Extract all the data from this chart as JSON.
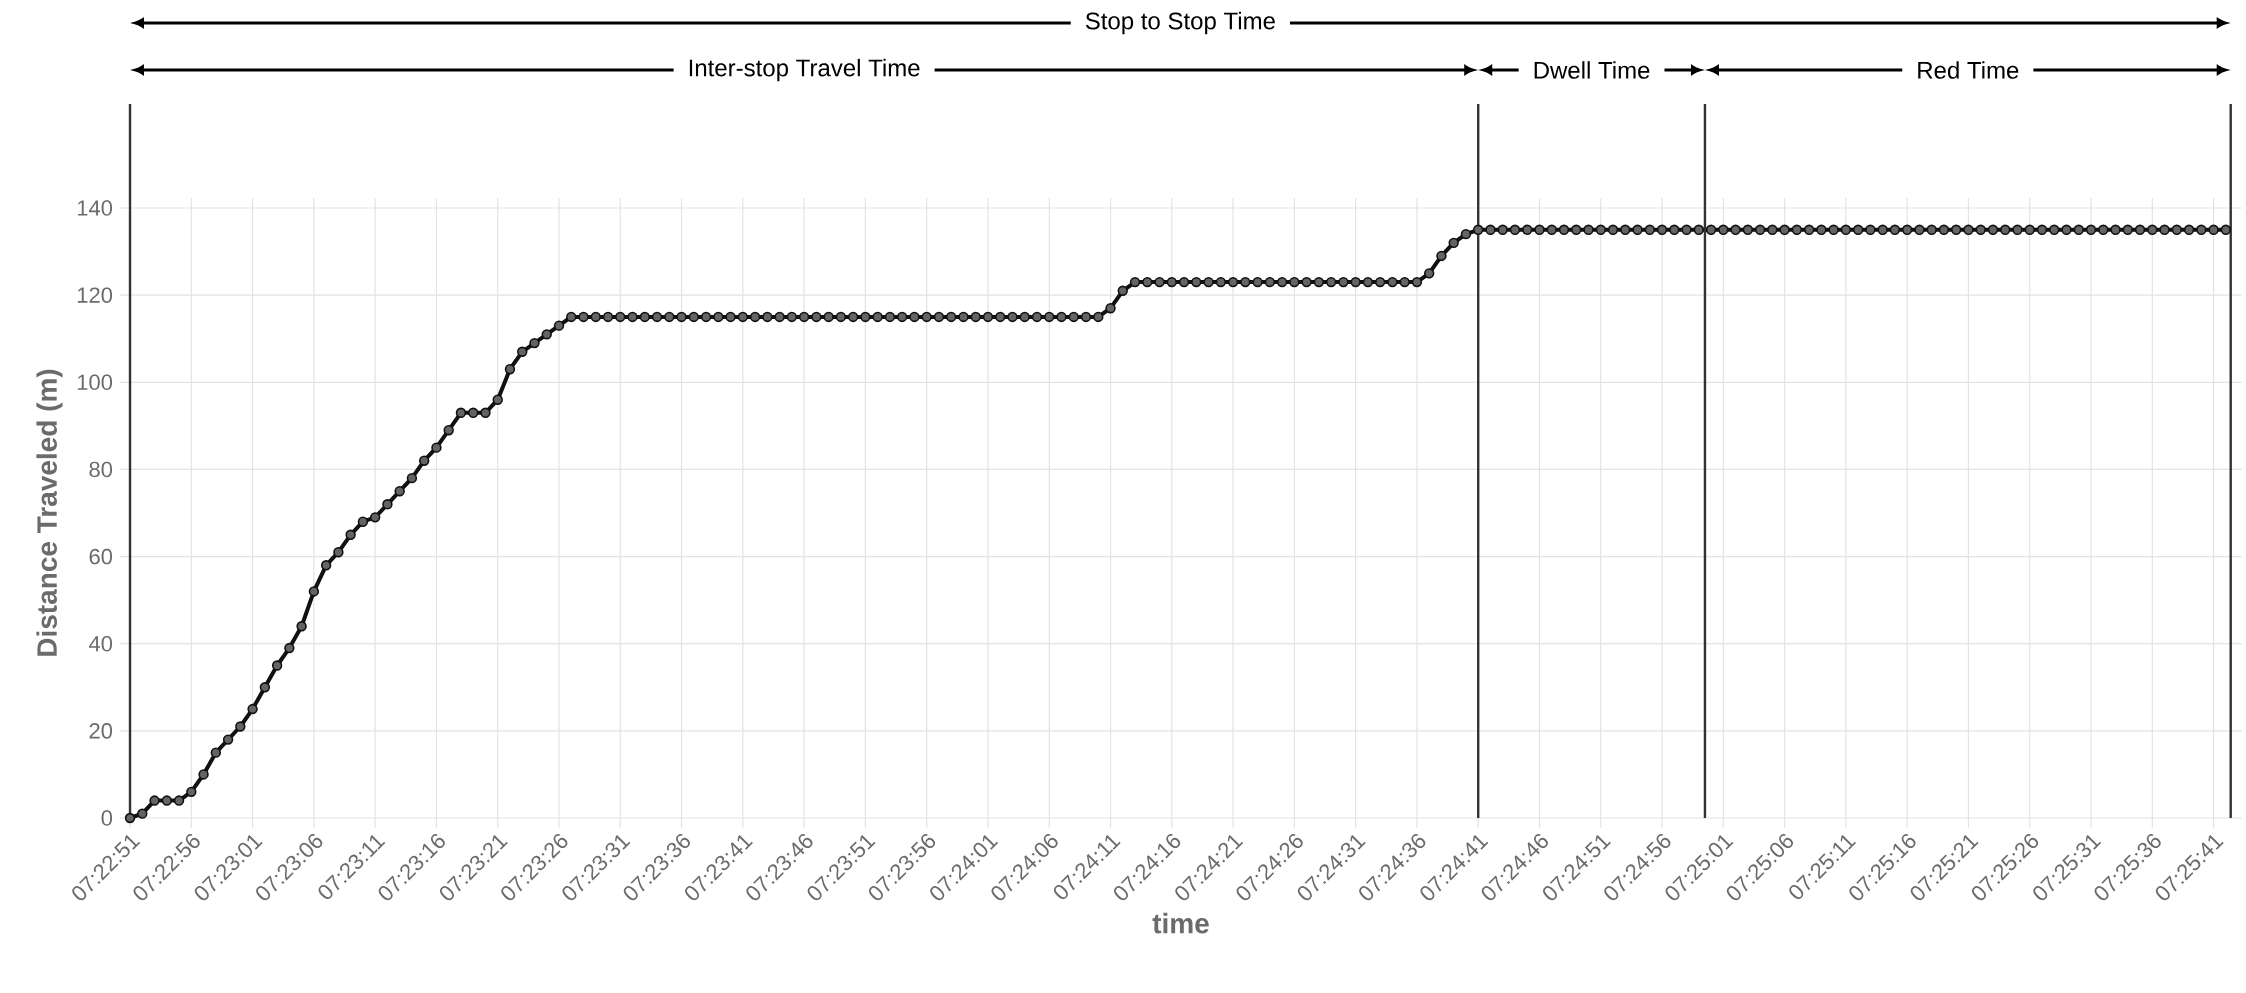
{
  "chart_data": {
    "type": "line",
    "xlabel": "time",
    "ylabel": "Distance Traveled (m)",
    "color": "#111111",
    "marker": "circle",
    "line_style": "solid",
    "grid": true,
    "x": [
      7.380833,
      7.381111,
      7.381389,
      7.381667,
      7.381944,
      7.382222,
      7.3825,
      7.382778,
      7.383056,
      7.383333,
      7.383611,
      7.383889,
      7.384167,
      7.384444,
      7.384722,
      7.385,
      7.385278,
      7.385556,
      7.385833,
      7.386111,
      7.386389,
      7.386667,
      7.386944,
      7.387222,
      7.3875,
      7.387778,
      7.388056,
      7.388333,
      7.388611,
      7.388889,
      7.389167,
      7.389444,
      7.389722,
      7.39,
      7.390278,
      7.390556,
      7.390833,
      7.391111,
      7.391389,
      7.391667,
      7.391944,
      7.392222,
      7.3925,
      7.392778,
      7.393056,
      7.393333,
      7.393611,
      7.393889,
      7.394167,
      7.394444,
      7.394722,
      7.395,
      7.395278,
      7.395556,
      7.395833,
      7.396111,
      7.396389,
      7.396667,
      7.396944,
      7.397222,
      7.3975,
      7.397778,
      7.398056,
      7.398333,
      7.398611,
      7.398889,
      7.399167,
      7.399444,
      7.399722,
      7.4,
      7.400278,
      7.400556,
      7.400833,
      7.401111,
      7.401389,
      7.401667,
      7.401944,
      7.402222,
      7.4025,
      7.402778,
      7.403056,
      7.403333,
      7.403611,
      7.403889,
      7.404167,
      7.404444,
      7.404722,
      7.405,
      7.405278,
      7.405556,
      7.405833,
      7.406111,
      7.406389,
      7.406667,
      7.406944,
      7.407222,
      7.4075,
      7.407778,
      7.408056,
      7.408333,
      7.408611,
      7.408889,
      7.409167,
      7.409444,
      7.409722,
      7.41,
      7.410278,
      7.410556,
      7.410833,
      7.411111,
      7.411389,
      7.411667,
      7.411944,
      7.412222,
      7.4125,
      7.412778,
      7.413056,
      7.413333,
      7.413611,
      7.413889,
      7.414167,
      7.414444,
      7.414722,
      7.415,
      7.415278,
      7.415556,
      7.415833,
      7.416111,
      7.416389,
      7.416667,
      7.416944,
      7.417222,
      7.4175,
      7.417778,
      7.418056,
      7.418333,
      7.418611,
      7.418889,
      7.419167,
      7.419444,
      7.419722,
      7.42,
      7.420278,
      7.420556,
      7.420833,
      7.421111,
      7.421389,
      7.421667,
      7.421944,
      7.422222,
      7.4225,
      7.422778,
      7.423056,
      7.423333,
      7.423611,
      7.423889,
      7.424167,
      7.424444,
      7.424722,
      7.425,
      7.425278,
      7.425556,
      7.425833,
      7.426111,
      7.426389,
      7.426667,
      7.426944,
      7.427222,
      7.4275,
      7.427778,
      7.428056,
      7.428333
    ],
    "values": [
      0,
      1,
      4,
      4,
      4,
      6,
      10,
      15,
      18,
      21,
      25,
      30,
      35,
      39,
      44,
      52,
      58,
      61,
      65,
      68,
      69,
      72,
      75,
      78,
      82,
      85,
      89,
      93,
      93,
      93,
      96,
      103,
      107,
      109,
      111,
      113,
      115,
      115,
      115,
      115,
      115,
      115,
      115,
      115,
      115,
      115,
      115,
      115,
      115,
      115,
      115,
      115,
      115,
      115,
      115,
      115,
      115,
      115,
      115,
      115,
      115,
      115,
      115,
      115,
      115,
      115,
      115,
      115,
      115,
      115,
      115,
      115,
      115,
      115,
      115,
      115,
      115,
      115,
      115,
      115,
      117,
      121,
      123,
      123,
      123,
      123,
      123,
      123,
      123,
      123,
      123,
      123,
      123,
      123,
      123,
      123,
      123,
      123,
      123,
      123,
      123,
      123,
      123,
      123,
      123,
      123,
      125,
      129,
      132,
      134,
      135,
      135,
      135,
      135,
      135,
      135,
      135,
      135,
      135,
      135,
      135,
      135,
      135,
      135,
      135,
      135,
      135,
      135,
      135,
      135,
      135,
      135,
      135,
      135,
      135,
      135,
      135,
      135,
      135,
      135,
      135,
      135,
      135,
      135,
      135,
      135,
      135,
      135,
      135,
      135,
      135,
      135,
      135,
      135,
      135,
      135,
      135,
      135,
      135,
      135,
      135,
      135,
      135,
      135,
      135,
      135,
      135,
      135,
      135,
      135,
      135,
      135
    ],
    "xlim": [
      7.380833,
      7.428472
    ],
    "ylim": [
      0,
      140
    ],
    "xticks": [
      {
        "value": 7.380833,
        "label": "07:22:51"
      },
      {
        "value": 7.382222,
        "label": "07:22:56"
      },
      {
        "value": 7.383611,
        "label": "07:23:01"
      },
      {
        "value": 7.385,
        "label": "07:23:06"
      },
      {
        "value": 7.386389,
        "label": "07:23:11"
      },
      {
        "value": 7.387778,
        "label": "07:23:16"
      },
      {
        "value": 7.389167,
        "label": "07:23:21"
      },
      {
        "value": 7.390556,
        "label": "07:23:26"
      },
      {
        "value": 7.391944,
        "label": "07:23:31"
      },
      {
        "value": 7.393333,
        "label": "07:23:36"
      },
      {
        "value": 7.394722,
        "label": "07:23:41"
      },
      {
        "value": 7.396111,
        "label": "07:23:46"
      },
      {
        "value": 7.3975,
        "label": "07:23:51"
      },
      {
        "value": 7.398889,
        "label": "07:23:56"
      },
      {
        "value": 7.400278,
        "label": "07:24:01"
      },
      {
        "value": 7.401667,
        "label": "07:24:06"
      },
      {
        "value": 7.403056,
        "label": "07:24:11"
      },
      {
        "value": 7.404444,
        "label": "07:24:16"
      },
      {
        "value": 7.405833,
        "label": "07:24:21"
      },
      {
        "value": 7.407222,
        "label": "07:24:26"
      },
      {
        "value": 7.408611,
        "label": "07:24:31"
      },
      {
        "value": 7.41,
        "label": "07:24:36"
      },
      {
        "value": 7.411389,
        "label": "07:24:41"
      },
      {
        "value": 7.412778,
        "label": "07:24:46"
      },
      {
        "value": 7.414167,
        "label": "07:24:51"
      },
      {
        "value": 7.415556,
        "label": "07:24:56"
      },
      {
        "value": 7.416944,
        "label": "07:25:01"
      },
      {
        "value": 7.418333,
        "label": "07:25:06"
      },
      {
        "value": 7.419722,
        "label": "07:25:11"
      },
      {
        "value": 7.421111,
        "label": "07:25:16"
      },
      {
        "value": 7.4225,
        "label": "07:25:21"
      },
      {
        "value": 7.423889,
        "label": "07:25:26"
      },
      {
        "value": 7.425278,
        "label": "07:25:31"
      },
      {
        "value": 7.426667,
        "label": "07:25:36"
      },
      {
        "value": 7.428056,
        "label": "07:25:41"
      }
    ],
    "yticks": [
      0,
      20,
      40,
      60,
      80,
      100,
      120,
      140
    ],
    "ref_lines": [
      {
        "axis": "x",
        "value": 7.380833,
        "color": "#333333"
      },
      {
        "axis": "x",
        "value": 7.411389,
        "color": "#333333"
      },
      {
        "axis": "x",
        "value": 7.416528,
        "color": "#333333"
      },
      {
        "axis": "x",
        "value": 7.428444,
        "color": "#333333"
      }
    ],
    "annotations": [
      "Stop to Stop Time",
      "Inter-stop Travel Time",
      "Dwell Time",
      "Red Time"
    ]
  }
}
